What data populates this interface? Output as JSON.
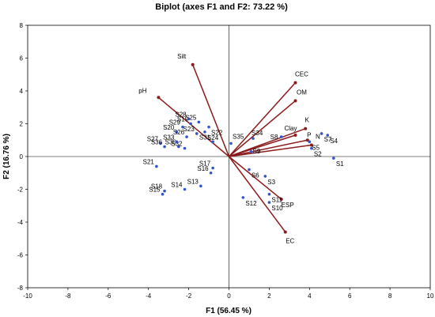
{
  "chart_data": {
    "type": "scatter",
    "title": "Biplot (axes F1 and F2: 73.22 %)",
    "xlabel": "F1 (56.45 %)",
    "ylabel": "F2 (16.76 %)",
    "xlim": [
      -10,
      10
    ],
    "ylim": [
      -8,
      8
    ],
    "xticks": [
      "-10",
      "-8",
      "-6",
      "-4",
      "-2",
      "0",
      "2",
      "4",
      "6",
      "8",
      "10"
    ],
    "yticks": [
      "-8",
      "-6",
      "-4",
      "-2",
      "0",
      "2",
      "4",
      "6",
      "8"
    ],
    "grid": false,
    "colors": {
      "observations": "#3355cc",
      "variables": "#8b1a1a"
    },
    "observations": [
      {
        "label": "S1",
        "x": 5.2,
        "y": -0.1
      },
      {
        "label": "S2",
        "x": 4.1,
        "y": 0.5
      },
      {
        "label": "S3",
        "x": 1.8,
        "y": -1.2
      },
      {
        "label": "S4",
        "x": 4.9,
        "y": 1.3
      },
      {
        "label": "S5",
        "x": 4.0,
        "y": 0.9
      },
      {
        "label": "S6",
        "x": 1.0,
        "y": -0.8
      },
      {
        "label": "S7",
        "x": 4.6,
        "y": 1.4
      },
      {
        "label": "S8",
        "x": 2.6,
        "y": 1.2
      },
      {
        "label": "S9",
        "x": 1.1,
        "y": 0.3
      },
      {
        "label": "S10",
        "x": 2.0,
        "y": -2.8
      },
      {
        "label": "S11",
        "x": 2.0,
        "y": -2.3
      },
      {
        "label": "S12",
        "x": 0.7,
        "y": -2.5
      },
      {
        "label": "S13",
        "x": -1.4,
        "y": -1.8
      },
      {
        "label": "S14",
        "x": -2.2,
        "y": -2.0
      },
      {
        "label": "S15",
        "x": -3.3,
        "y": -2.3
      },
      {
        "label": "S16",
        "x": -0.9,
        "y": -1.0
      },
      {
        "label": "S17",
        "x": -0.8,
        "y": -0.7
      },
      {
        "label": "S18",
        "x": -3.2,
        "y": -2.1
      },
      {
        "label": "S19",
        "x": -1.9,
        "y": 2.0
      },
      {
        "label": "S20",
        "x": -2.6,
        "y": 1.5
      },
      {
        "label": "S21",
        "x": -3.6,
        "y": -0.6
      },
      {
        "label": "S22",
        "x": -1.0,
        "y": 1.8
      },
      {
        "label": "S23",
        "x": -1.6,
        "y": 1.4
      },
      {
        "label": "S24",
        "x": -1.2,
        "y": 1.5
      },
      {
        "label": "S25",
        "x": -1.5,
        "y": 2.1
      },
      {
        "label": "S26",
        "x": -2.1,
        "y": 1.2
      },
      {
        "label": "S27",
        "x": -3.4,
        "y": 0.8
      },
      {
        "label": "S28",
        "x": -2.0,
        "y": 2.3
      },
      {
        "label": "S29",
        "x": -2.3,
        "y": 1.8
      },
      {
        "label": "S30",
        "x": -2.5,
        "y": 0.6
      },
      {
        "label": "S31",
        "x": -0.8,
        "y": 0.9
      },
      {
        "label": "S32",
        "x": -2.2,
        "y": 0.5
      },
      {
        "label": "S33",
        "x": -2.6,
        "y": 0.9
      },
      {
        "label": "S34",
        "x": 1.2,
        "y": 1.1
      },
      {
        "label": "S35",
        "x": 0.1,
        "y": 0.8
      },
      {
        "label": "S36",
        "x": -3.2,
        "y": 0.6
      }
    ],
    "variables": [
      {
        "label": "Silt",
        "x": -1.8,
        "y": 5.6
      },
      {
        "label": "pH",
        "x": -3.5,
        "y": 3.6
      },
      {
        "label": "CEC",
        "x": 3.3,
        "y": 4.5
      },
      {
        "label": "OM",
        "x": 3.3,
        "y": 3.4
      },
      {
        "label": "K",
        "x": 3.8,
        "y": 1.7
      },
      {
        "label": "Clay",
        "x": 3.3,
        "y": 1.3
      },
      {
        "label": "P",
        "x": 3.9,
        "y": 1.0
      },
      {
        "label": "N",
        "x": 4.1,
        "y": 0.7
      },
      {
        "label": "ESP",
        "x": 2.6,
        "y": -2.6
      },
      {
        "label": "EC",
        "x": 2.8,
        "y": -4.6
      }
    ]
  }
}
